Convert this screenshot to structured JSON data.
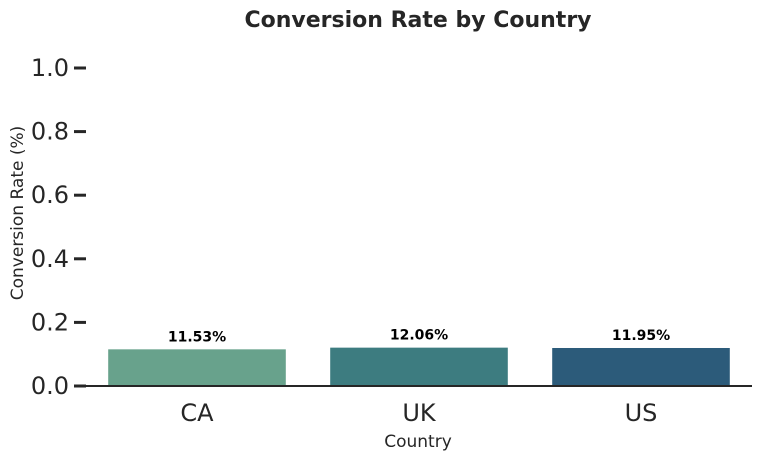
{
  "chart_data": {
    "type": "bar",
    "title": "Conversion Rate by Country",
    "xlabel": "Country",
    "ylabel": "Conversion Rate (%)",
    "categories": [
      "CA",
      "UK",
      "US"
    ],
    "values": [
      0.1153,
      0.1206,
      0.1195
    ],
    "data_labels": [
      "11.53%",
      "12.06%",
      "11.95%"
    ],
    "bar_colors": [
      "#68a28c",
      "#3d7c80",
      "#2c5b7a"
    ],
    "ylim": [
      0,
      1.0
    ],
    "yticks": [
      0.0,
      0.2,
      0.4,
      0.6,
      0.8,
      1.0
    ],
    "ytick_labels": [
      "0.0",
      "0.2",
      "0.4",
      "0.6",
      "0.8",
      "1.0"
    ],
    "grid": false,
    "legend": "none"
  }
}
